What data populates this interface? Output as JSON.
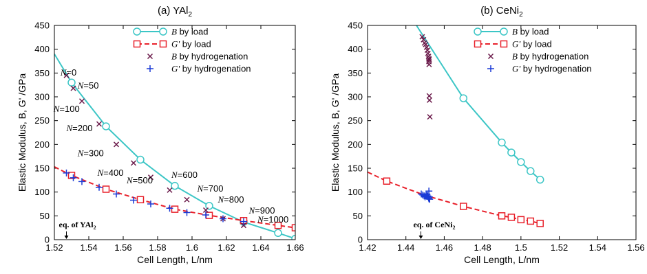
{
  "colors": {
    "B_load": "#3cc6c6",
    "G_load": "#e8202a",
    "B_hydro": "#6a1a4a",
    "G_hydro": "#1a3ad6"
  },
  "chart_data": [
    {
      "type": "line",
      "title_main": "(a) YAl",
      "title_sub": "2",
      "ylabel": "Elastic Modulus, B, G' /GPa",
      "xlabel": "Cell Length, L/nm",
      "xlim": [
        1.52,
        1.66
      ],
      "ylim": [
        0,
        450
      ],
      "xticks": [
        "1.52",
        "1.54",
        "1.56",
        "1.58",
        "1.6",
        "1.62",
        "1.64",
        "1.66"
      ],
      "yticks": [
        "0",
        "50",
        "100",
        "150",
        "200",
        "250",
        "300",
        "350",
        "400",
        "450"
      ],
      "legend_position": "top-right",
      "legend": [
        {
          "sym": "B",
          "rest": " by load"
        },
        {
          "sym": "G'",
          "rest": " by load"
        },
        {
          "sym": "B",
          "rest": " by hydrogenation"
        },
        {
          "sym": "G'",
          "rest": " by hydrogenation"
        }
      ],
      "series": [
        {
          "name": "B by load",
          "style": "line-circle",
          "x": [
            1.53,
            1.55,
            1.57,
            1.59,
            1.61,
            1.63,
            1.65,
            1.66
          ],
          "y": [
            330,
            238,
            168,
            113,
            71,
            37,
            14,
            2
          ],
          "line_x": [
            1.52,
            1.53,
            1.55,
            1.57,
            1.59,
            1.61,
            1.63,
            1.65,
            1.66
          ],
          "line_y": [
            390,
            330,
            238,
            168,
            113,
            71,
            37,
            14,
            2
          ]
        },
        {
          "name": "G' by load",
          "style": "dash-square",
          "x": [
            1.53,
            1.55,
            1.57,
            1.59,
            1.61,
            1.63,
            1.65,
            1.66
          ],
          "y": [
            135,
            106,
            84,
            64,
            51,
            40,
            30,
            25
          ],
          "line_x": [
            1.52,
            1.53,
            1.55,
            1.57,
            1.59,
            1.61,
            1.63,
            1.65,
            1.66
          ],
          "line_y": [
            153,
            135,
            106,
            84,
            64,
            51,
            40,
            30,
            25
          ]
        },
        {
          "name": "B by hydrogenation",
          "style": "x",
          "x": [
            1.527,
            1.531,
            1.536,
            1.546,
            1.556,
            1.566,
            1.576,
            1.587,
            1.597,
            1.608,
            1.618,
            1.63
          ],
          "y": [
            345,
            318,
            291,
            243,
            200,
            161,
            131,
            104,
            84,
            62,
            44,
            30
          ]
        },
        {
          "name": "G' by hydrogenation",
          "style": "plus",
          "x": [
            1.527,
            1.531,
            1.536,
            1.546,
            1.556,
            1.566,
            1.576,
            1.587,
            1.597,
            1.608,
            1.618,
            1.63
          ],
          "y": [
            140,
            130,
            122,
            110,
            96,
            83,
            75,
            66,
            57,
            52,
            44,
            38
          ]
        }
      ],
      "annotations": [
        {
          "text": "=0",
          "x": 1.5235,
          "y": 345
        },
        {
          "text": "=50",
          "x": 1.5335,
          "y": 317
        },
        {
          "text": "=100",
          "x": 1.5195,
          "y": 268
        },
        {
          "text": "=200",
          "x": 1.527,
          "y": 228
        },
        {
          "text": "=300",
          "x": 1.5335,
          "y": 175
        },
        {
          "text": "=400",
          "x": 1.545,
          "y": 134
        },
        {
          "text": "=500",
          "x": 1.562,
          "y": 118
        },
        {
          "text": "=600",
          "x": 1.588,
          "y": 130
        },
        {
          "text": "=700",
          "x": 1.603,
          "y": 101
        },
        {
          "text": "=800",
          "x": 1.615,
          "y": 78
        },
        {
          "text": "=900",
          "x": 1.633,
          "y": 55
        },
        {
          "text": "=1000",
          "x": 1.638,
          "y": 36
        }
      ],
      "eq_label": {
        "text_main": "eq. of YAl",
        "text_sub": "2",
        "x": 1.527
      }
    },
    {
      "type": "line",
      "title_main": "(b) CeNi",
      "title_sub": "2",
      "ylabel": "Elastic Modulus, B, G' /GPa",
      "xlabel": "Cell Length, L/nm",
      "xlim": [
        1.42,
        1.56
      ],
      "ylim": [
        0,
        450
      ],
      "xticks": [
        "1.42",
        "1.44",
        "1.46",
        "1.48",
        "1.5",
        "1.52",
        "1.54",
        "1.56"
      ],
      "yticks": [
        "0",
        "50",
        "100",
        "150",
        "200",
        "250",
        "300",
        "350",
        "400",
        "450"
      ],
      "legend_position": "top-right",
      "legend": [
        {
          "sym": "B",
          "rest": " by load"
        },
        {
          "sym": "G'",
          "rest": " by load"
        },
        {
          "sym": "B",
          "rest": " by hydrogenation"
        },
        {
          "sym": "G'",
          "rest": " by hydrogenation"
        }
      ],
      "series": [
        {
          "name": "B by load",
          "style": "line-circle",
          "x": [
            1.47,
            1.49,
            1.495,
            1.5,
            1.505,
            1.51
          ],
          "y": [
            297,
            204,
            183,
            163,
            144,
            126
          ],
          "line_x": [
            1.4455,
            1.47,
            1.49,
            1.495,
            1.5,
            1.505,
            1.51
          ],
          "line_y": [
            450,
            297,
            204,
            183,
            163,
            144,
            126
          ]
        },
        {
          "name": "G' by load",
          "style": "dash-square",
          "x": [
            1.43,
            1.47,
            1.49,
            1.495,
            1.5,
            1.505,
            1.51
          ],
          "y": [
            123,
            70,
            50,
            47,
            42,
            39,
            34
          ],
          "line_x": [
            1.42,
            1.43,
            1.45,
            1.47,
            1.49,
            1.495,
            1.5,
            1.505,
            1.51
          ],
          "line_y": [
            142,
            123,
            93,
            70,
            50,
            47,
            42,
            39,
            34
          ]
        },
        {
          "name": "B by hydrogenation",
          "style": "x",
          "x": [
            1.4485,
            1.4492,
            1.4497,
            1.4503,
            1.4508,
            1.4512,
            1.4515,
            1.4518,
            1.452,
            1.452,
            1.4521,
            1.4522,
            1.4521,
            1.4523,
            1.4525
          ],
          "y": [
            426,
            420,
            413,
            410,
            404,
            398,
            391,
            385,
            380,
            374,
            368,
            302,
            378,
            293,
            258
          ]
        },
        {
          "name": "G' by hydrogenation",
          "style": "plus",
          "x": [
            1.448,
            1.4488,
            1.4495,
            1.45,
            1.4505,
            1.451,
            1.4514,
            1.4518,
            1.452,
            1.4522,
            1.4524,
            1.452
          ],
          "y": [
            96,
            94,
            92,
            90,
            93,
            95,
            92,
            88,
            86,
            90,
            85,
            102
          ]
        }
      ],
      "annotations": [],
      "eq_label": {
        "text_main": "eq. of CeNi",
        "text_sub": "2",
        "x": 1.4478
      }
    }
  ]
}
